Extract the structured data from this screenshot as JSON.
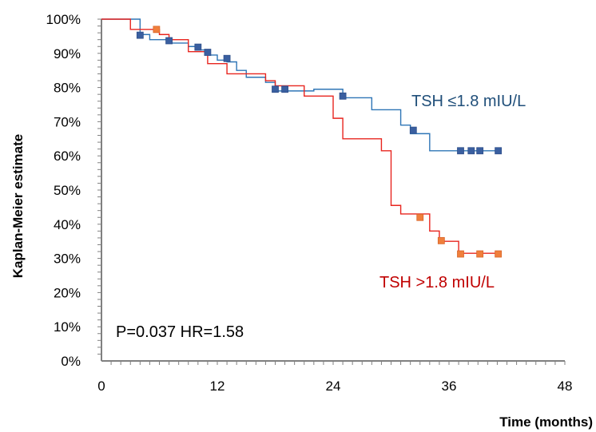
{
  "chart_data": {
    "type": "line",
    "subtype": "kaplan-meier step",
    "title": "",
    "xlabel": "Time (months)",
    "ylabel": "Kaplan-Meier estimate",
    "xlim": [
      0,
      48
    ],
    "ylim": [
      0,
      1
    ],
    "x_ticks": [
      "0",
      "12",
      "24",
      "36",
      "48"
    ],
    "x_tick_values": [
      0,
      12,
      24,
      36,
      48
    ],
    "y_ticks": [
      "0%",
      "10%",
      "20%",
      "30%",
      "40%",
      "50%",
      "60%",
      "70%",
      "80%",
      "90%",
      "100%"
    ],
    "y_tick_values": [
      0,
      0.1,
      0.2,
      0.3,
      0.4,
      0.5,
      0.6,
      0.7,
      0.8,
      0.9,
      1.0
    ],
    "grid": false,
    "series": [
      {
        "name": "TSH ≤1.8 mIU/L",
        "color": "#2E75B6",
        "marker_color": "#3A5FA0",
        "steps": [
          [
            0,
            1.0
          ],
          [
            4,
            0.955
          ],
          [
            5,
            0.94
          ],
          [
            7,
            0.93
          ],
          [
            9,
            0.92
          ],
          [
            10,
            0.91
          ],
          [
            11,
            0.895
          ],
          [
            12,
            0.88
          ],
          [
            13,
            0.875
          ],
          [
            14,
            0.85
          ],
          [
            15,
            0.83
          ],
          [
            17,
            0.815
          ],
          [
            18,
            0.79
          ],
          [
            22,
            0.795
          ],
          [
            25,
            0.77
          ],
          [
            28,
            0.735
          ],
          [
            31,
            0.69
          ],
          [
            32,
            0.665
          ],
          [
            34,
            0.615
          ],
          [
            41,
            0.615
          ]
        ],
        "censored": [
          [
            4,
            0.953
          ],
          [
            7,
            0.937
          ],
          [
            10,
            0.918
          ],
          [
            11,
            0.903
          ],
          [
            13,
            0.885
          ],
          [
            18,
            0.795
          ],
          [
            19,
            0.795
          ],
          [
            25,
            0.775
          ],
          [
            32.3,
            0.675
          ],
          [
            37.2,
            0.615
          ],
          [
            38.3,
            0.615
          ],
          [
            39.2,
            0.615
          ],
          [
            41.1,
            0.615
          ]
        ]
      },
      {
        "name": "TSH >1.8 mIU/L",
        "color": "#E8251F",
        "marker_color": "#F07F3C",
        "steps": [
          [
            0,
            1.0
          ],
          [
            3,
            0.97
          ],
          [
            6,
            0.955
          ],
          [
            7,
            0.94
          ],
          [
            9,
            0.905
          ],
          [
            11,
            0.87
          ],
          [
            13,
            0.84
          ],
          [
            17,
            0.82
          ],
          [
            18,
            0.805
          ],
          [
            21,
            0.775
          ],
          [
            24,
            0.71
          ],
          [
            25,
            0.65
          ],
          [
            29,
            0.615
          ],
          [
            30,
            0.455
          ],
          [
            31,
            0.43
          ],
          [
            34,
            0.38
          ],
          [
            35,
            0.35
          ],
          [
            37,
            0.315
          ],
          [
            41,
            0.315
          ]
        ],
        "censored": [
          [
            5.7,
            0.97
          ],
          [
            33,
            0.42
          ],
          [
            35.2,
            0.352
          ],
          [
            37.2,
            0.313
          ],
          [
            39.2,
            0.313
          ],
          [
            41.1,
            0.313
          ]
        ]
      }
    ],
    "annotations": [
      {
        "text": "TSH ≤1.8 mIU/L",
        "color": "#1F4E79"
      },
      {
        "text": "TSH >1.8 mIU/L",
        "color": "#C00000"
      },
      {
        "text": "P=0.037 HR=1.58",
        "color": "#000000"
      }
    ]
  }
}
